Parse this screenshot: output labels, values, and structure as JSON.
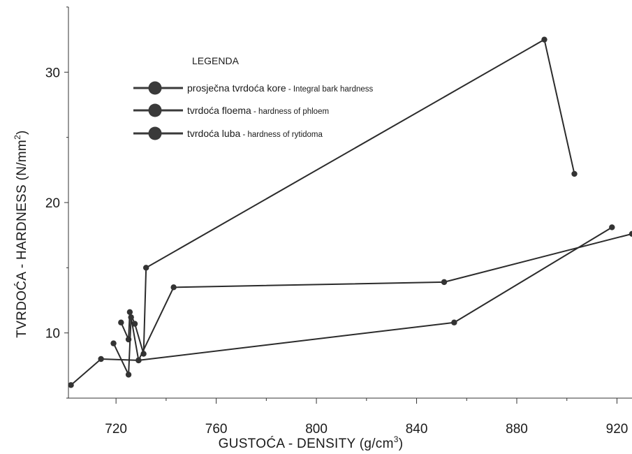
{
  "chart_data": {
    "type": "line",
    "xlabel": "GUSTOĆA - DENSITY (g/cm",
    "xlabel_sup": "3",
    "xlabel_end": ")",
    "ylabel": "TVRDOĆA - HARDNESS (N/mm",
    "ylabel_sup": "2",
    "ylabel_end": ")",
    "xlim": [
      701,
      926
    ],
    "ylim": [
      5,
      35
    ],
    "x_ticks": [
      720,
      760,
      800,
      840,
      880,
      920
    ],
    "x_tick_labels": [
      "720",
      "760",
      "800",
      "840",
      "880",
      "920"
    ],
    "y_ticks": [
      10,
      20,
      30
    ],
    "y_tick_labels": [
      "10",
      "20",
      "30"
    ],
    "legend_placement": "top-left",
    "legend": {
      "title": "LEGENDA",
      "entries": [
        {
          "main": "prosječna tvrdoća kore",
          "sub": " - Integral bark hardness"
        },
        {
          "main": "tvrdoća floema",
          "sub": " - hardness of phloem"
        },
        {
          "main": "tvrdoća luba",
          "sub": " - hardness of rytidoma"
        }
      ]
    },
    "series": [
      {
        "x": [
          722,
          725,
          725.5,
          727.5,
          731,
          732,
          891,
          903
        ],
        "y": [
          10.8,
          9.5,
          11.6,
          10.7,
          8.4,
          15.0,
          32.5,
          22.2
        ]
      },
      {
        "x": [
          719,
          725,
          726,
          729,
          743,
          851,
          926
        ],
        "y": [
          9.2,
          6.8,
          11.2,
          7.9,
          13.5,
          13.9,
          17.6
        ]
      },
      {
        "x": [
          702,
          714,
          729,
          855,
          918
        ],
        "y": [
          6.0,
          8.0,
          7.9,
          10.8,
          18.1
        ]
      }
    ],
    "colors": {
      "line": "#2b2b2b",
      "marker": "#333333",
      "legend_marker": "#3a3a3a"
    }
  }
}
